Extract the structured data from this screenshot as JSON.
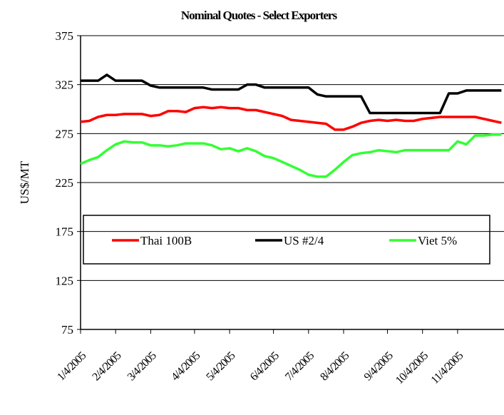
{
  "chart_data": {
    "type": "line",
    "title": "Nominal Quotes - Select Exporters",
    "y_label": "US$/MT",
    "categories": [
      "1/4/2005",
      null,
      null,
      null,
      "2/4/2005",
      null,
      null,
      null,
      "3/4/2005",
      null,
      null,
      null,
      null,
      "4/4/2005",
      null,
      null,
      null,
      "5/4/2005",
      null,
      null,
      null,
      null,
      "6/4/2005",
      null,
      null,
      null,
      "7/4/2005",
      null,
      null,
      null,
      "8/4/2005",
      null,
      null,
      null,
      null,
      "9/4/2005",
      null,
      null,
      null,
      "10/4/2005",
      null,
      null,
      null,
      "11/4/2005",
      null,
      null,
      null,
      null,
      null
    ],
    "series": [
      {
        "name": "Thai 100B",
        "color": "#ff0000",
        "values": [
          287,
          288,
          292,
          294,
          294,
          295,
          295,
          295,
          293,
          294,
          298,
          298,
          297,
          301,
          302,
          301,
          302,
          301,
          301,
          299,
          299,
          297,
          295,
          293,
          289,
          288,
          287,
          286,
          285,
          279,
          279,
          282,
          286,
          288,
          289,
          288,
          289,
          288,
          288,
          290,
          291,
          292,
          292,
          292,
          292,
          292,
          290,
          288,
          286
        ]
      },
      {
        "name": "US #2/4",
        "color": "#000000",
        "values": [
          329,
          329,
          329,
          335,
          329,
          329,
          329,
          329,
          324,
          322,
          322,
          322,
          322,
          322,
          322,
          320,
          320,
          320,
          320,
          325,
          325,
          322,
          322,
          322,
          322,
          322,
          322,
          315,
          313,
          313,
          313,
          313,
          313,
          296,
          296,
          296,
          296,
          296,
          296,
          296,
          296,
          296,
          316,
          316,
          319,
          319,
          319,
          319,
          319
        ]
      },
      {
        "name": "Viet 5%",
        "color": "#33ff33",
        "values": [
          244,
          248,
          251,
          258,
          264,
          267,
          266,
          266,
          263,
          263,
          262,
          263,
          265,
          265,
          265,
          263,
          259,
          260,
          257,
          260,
          257,
          252,
          250,
          246,
          242,
          238,
          233,
          231,
          231,
          238,
          246,
          253,
          255,
          256,
          258,
          257,
          256,
          258,
          258,
          258,
          258,
          258,
          258,
          267,
          264,
          273,
          273,
          274,
          274
        ]
      }
    ],
    "ylim": [
      75,
      375
    ],
    "yticks": [
      75,
      125,
      175,
      225,
      275,
      325,
      375
    ],
    "grid": true
  }
}
